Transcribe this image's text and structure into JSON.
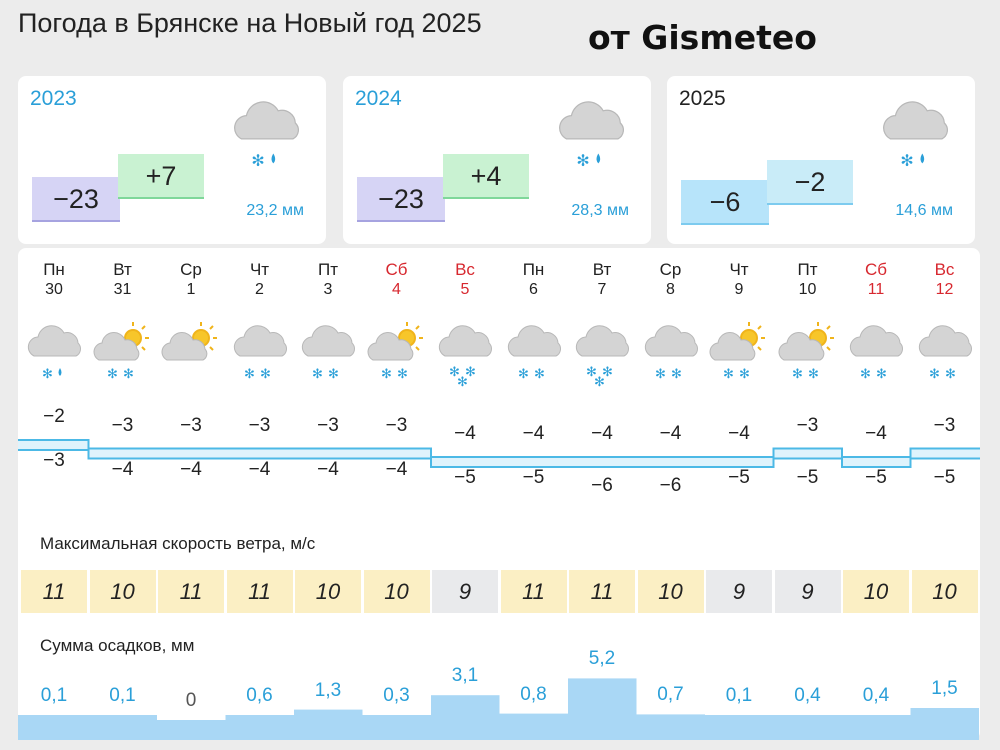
{
  "header": {
    "title": "Погода в Брянске на Новый год 2025",
    "brand": "от Gismeteo"
  },
  "years": [
    {
      "year": "2023",
      "low": "−23",
      "high": "+7",
      "precip": "23,2 мм",
      "icon": "cloud-snow-rain-icon",
      "current": false
    },
    {
      "year": "2024",
      "low": "−23",
      "high": "+4",
      "precip": "28,3 мм",
      "icon": "cloud-snow-rain-icon",
      "current": false
    },
    {
      "year": "2025",
      "low": "−6",
      "high": "−2",
      "precip": "14,6 мм",
      "icon": "cloud-snow-rain-icon",
      "current": true
    }
  ],
  "days": [
    {
      "dow": "Пн",
      "date": "30",
      "weekend": false,
      "icon": "cloud-snow-rain",
      "max": "−2",
      "min": "−3",
      "wind": "11",
      "precip": "0,1",
      "p": 0.1
    },
    {
      "dow": "Вт",
      "date": "31",
      "weekend": false,
      "icon": "sun-cloud-snow",
      "max": "−3",
      "min": "−4",
      "wind": "10",
      "precip": "0,1",
      "p": 0.1
    },
    {
      "dow": "Ср",
      "date": "1",
      "weekend": false,
      "icon": "sun-cloud",
      "max": "−3",
      "min": "−4",
      "wind": "11",
      "precip": "0",
      "p": 0
    },
    {
      "dow": "Чт",
      "date": "2",
      "weekend": false,
      "icon": "cloud-snow",
      "max": "−3",
      "min": "−4",
      "wind": "11",
      "precip": "0,6",
      "p": 0.6
    },
    {
      "dow": "Пт",
      "date": "3",
      "weekend": false,
      "icon": "cloud-snow",
      "max": "−3",
      "min": "−4",
      "wind": "10",
      "precip": "1,3",
      "p": 1.3
    },
    {
      "dow": "Сб",
      "date": "4",
      "weekend": true,
      "icon": "sun-cloud-snow",
      "max": "−3",
      "min": "−4",
      "wind": "10",
      "precip": "0,3",
      "p": 0.3
    },
    {
      "dow": "Вс",
      "date": "5",
      "weekend": true,
      "icon": "cloud-heavy-snow",
      "max": "−4",
      "min": "−5",
      "wind": "9",
      "precip": "3,1",
      "p": 3.1
    },
    {
      "dow": "Пн",
      "date": "6",
      "weekend": false,
      "icon": "cloud-snow",
      "max": "−4",
      "min": "−5",
      "wind": "11",
      "precip": "0,8",
      "p": 0.8
    },
    {
      "dow": "Вт",
      "date": "7",
      "weekend": false,
      "icon": "cloud-heavy-snow",
      "max": "−4",
      "min": "−6",
      "wind": "11",
      "precip": "5,2",
      "p": 5.2
    },
    {
      "dow": "Ср",
      "date": "8",
      "weekend": false,
      "icon": "cloud-snow",
      "max": "−4",
      "min": "−6",
      "wind": "10",
      "precip": "0,7",
      "p": 0.7
    },
    {
      "dow": "Чт",
      "date": "9",
      "weekend": false,
      "icon": "sun-cloud-snow",
      "max": "−4",
      "min": "−5",
      "wind": "9",
      "precip": "0,1",
      "p": 0.1
    },
    {
      "dow": "Пт",
      "date": "10",
      "weekend": false,
      "icon": "sun-cloud-snow",
      "max": "−3",
      "min": "−5",
      "wind": "9",
      "precip": "0,4",
      "p": 0.4
    },
    {
      "dow": "Сб",
      "date": "11",
      "weekend": true,
      "icon": "cloud-snow",
      "max": "−4",
      "min": "−5",
      "wind": "10",
      "precip": "0,4",
      "p": 0.4
    },
    {
      "dow": "Вс",
      "date": "12",
      "weekend": true,
      "icon": "cloud-snow",
      "max": "−3",
      "min": "−5",
      "wind": "10",
      "precip": "1,5",
      "p": 1.5
    }
  ],
  "labels": {
    "wind": "Максимальная скорость ветра, м/с",
    "precip": "Сумма осадков, мм"
  },
  "colors": {
    "accent": "#2a9fd8",
    "weekend": "#d7282f",
    "wind_strong": "#fbefc4",
    "wind_calm": "#e9eaec",
    "precip_fill": "#a9d7f5"
  }
}
